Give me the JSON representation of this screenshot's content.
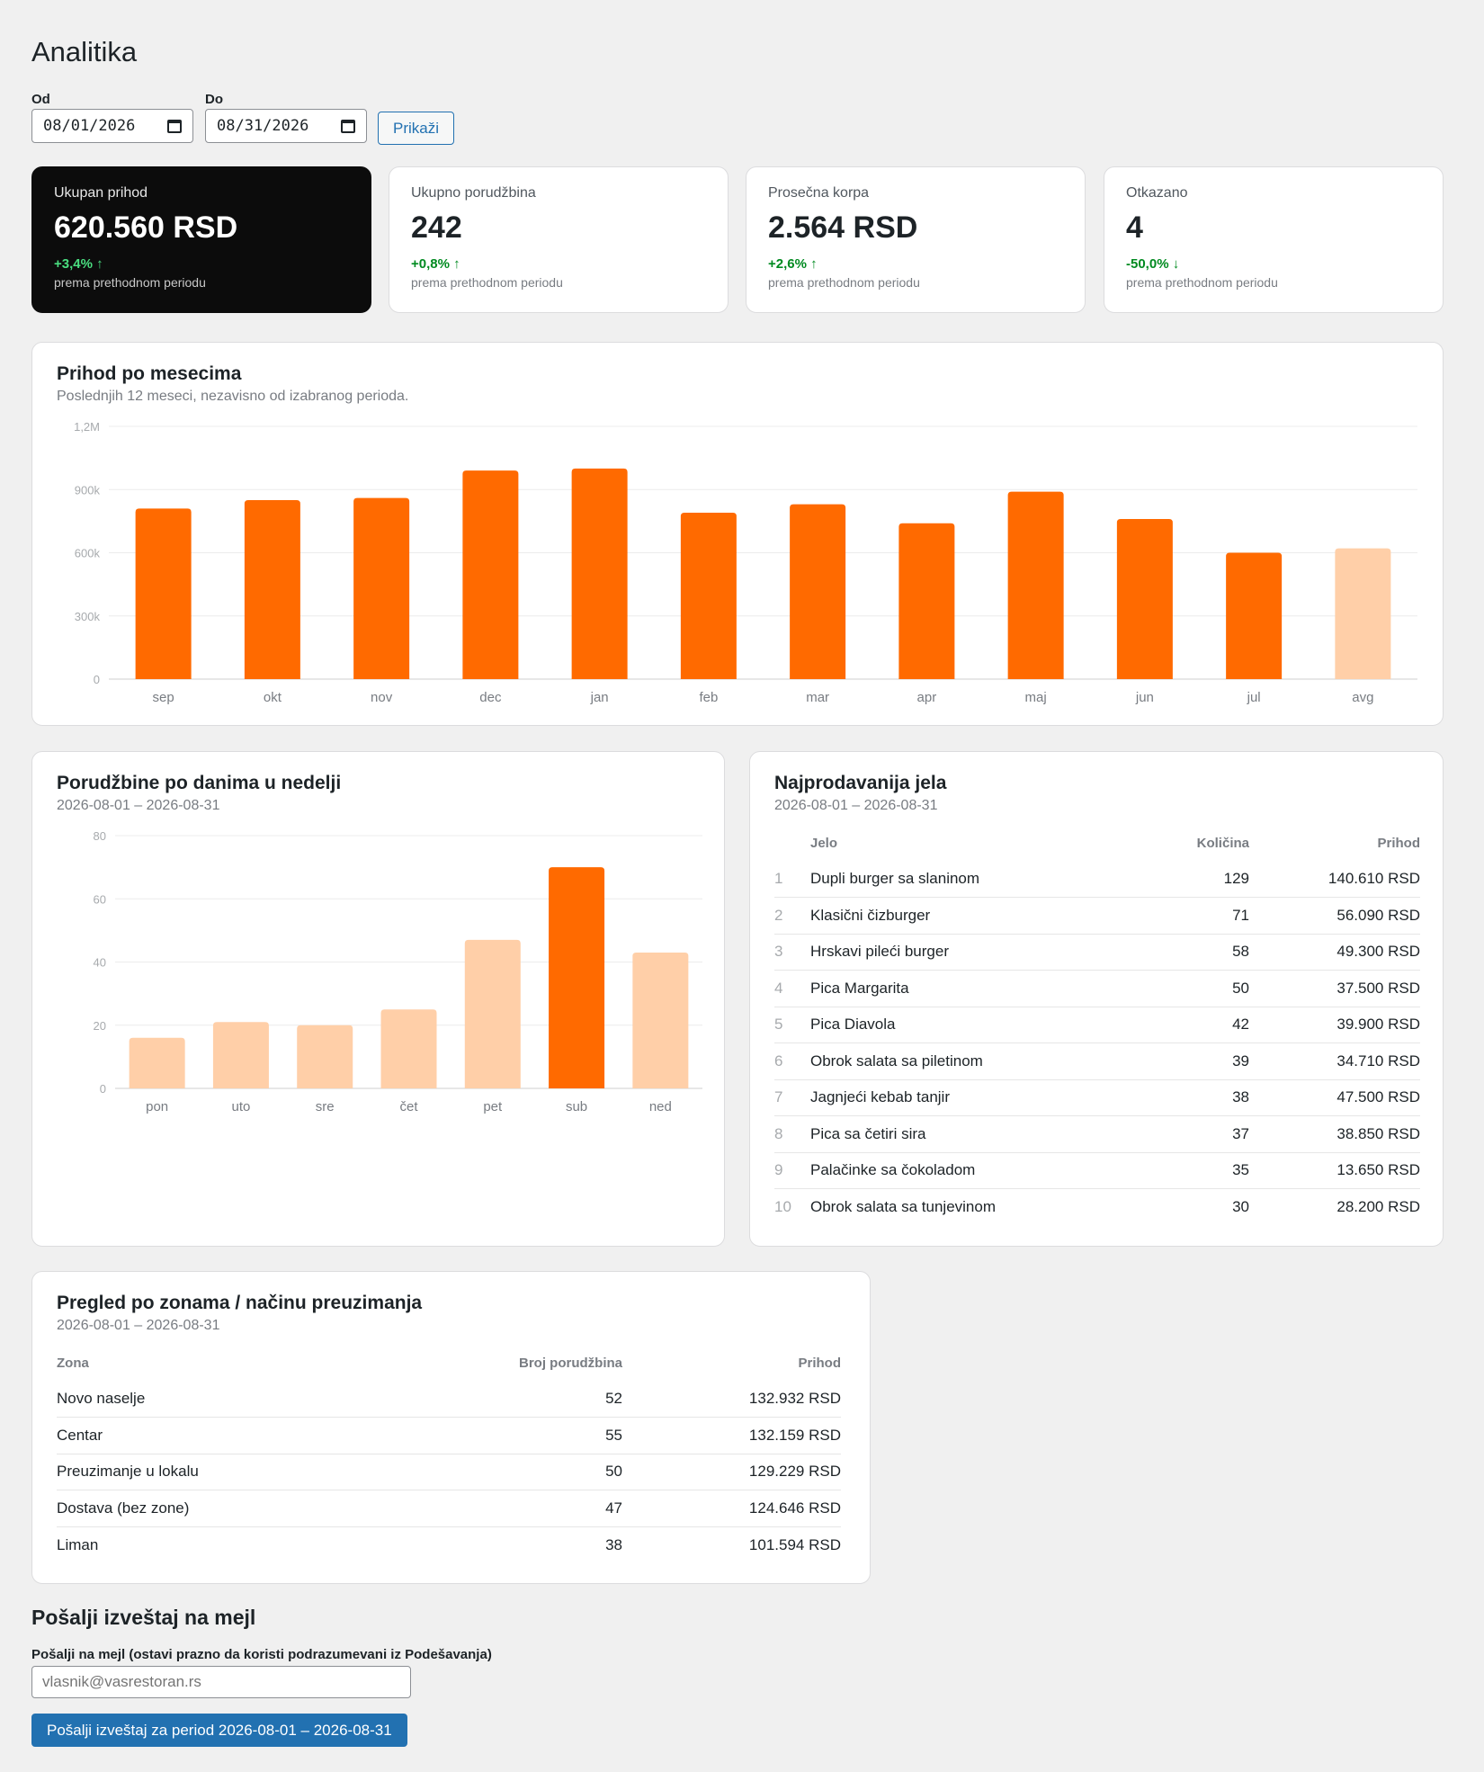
{
  "page": {
    "title": "Analitika"
  },
  "filter": {
    "from_label": "Od",
    "from_value": "08/01/2026",
    "to_label": "Do",
    "to_value": "08/31/2026",
    "show_button": "Prikaži"
  },
  "kpis": [
    {
      "label": "Ukupan prihod",
      "value": "620.560 RSD",
      "delta": "+3,4% ↑",
      "note": "prema prethodnom periodu"
    },
    {
      "label": "Ukupno porudžbina",
      "value": "242",
      "delta": "+0,8% ↑",
      "note": "prema prethodnom periodu"
    },
    {
      "label": "Prosečna korpa",
      "value": "2.564 RSD",
      "delta": "+2,6% ↑",
      "note": "prema prethodnom periodu"
    },
    {
      "label": "Otkazano",
      "value": "4",
      "delta": "-50,0% ↓",
      "note": "prema prethodnom periodu"
    }
  ],
  "monthly": {
    "title": "Prihod po mesecima",
    "subtitle": "Poslednjih 12 meseci, nezavisno od izabranog perioda."
  },
  "weekly": {
    "title": "Porudžbine po danima u nedelji",
    "subtitle": "2026-08-01 – 2026-08-31"
  },
  "top_dishes": {
    "title": "Najprodavanija jela",
    "subtitle": "2026-08-01 – 2026-08-31",
    "headers": {
      "name": "Jelo",
      "qty": "Količina",
      "revenue": "Prihod"
    },
    "rows": [
      {
        "rank": "1",
        "name": "Dupli burger sa slaninom",
        "qty": "129",
        "revenue": "140.610 RSD"
      },
      {
        "rank": "2",
        "name": "Klasični čizburger",
        "qty": "71",
        "revenue": "56.090 RSD"
      },
      {
        "rank": "3",
        "name": "Hrskavi pileći burger",
        "qty": "58",
        "revenue": "49.300 RSD"
      },
      {
        "rank": "4",
        "name": "Pica Margarita",
        "qty": "50",
        "revenue": "37.500 RSD"
      },
      {
        "rank": "5",
        "name": "Pica Diavola",
        "qty": "42",
        "revenue": "39.900 RSD"
      },
      {
        "rank": "6",
        "name": "Obrok salata sa piletinom",
        "qty": "39",
        "revenue": "34.710 RSD"
      },
      {
        "rank": "7",
        "name": "Jagnjeći kebab tanjir",
        "qty": "38",
        "revenue": "47.500 RSD"
      },
      {
        "rank": "8",
        "name": "Pica sa četiri sira",
        "qty": "37",
        "revenue": "38.850 RSD"
      },
      {
        "rank": "9",
        "name": "Palačinke sa čokoladom",
        "qty": "35",
        "revenue": "13.650 RSD"
      },
      {
        "rank": "10",
        "name": "Obrok salata sa tunjevinom",
        "qty": "30",
        "revenue": "28.200 RSD"
      }
    ]
  },
  "zones": {
    "title": "Pregled po zonama / načinu preuzimanja",
    "subtitle": "2026-08-01 – 2026-08-31",
    "headers": {
      "zone": "Zona",
      "orders": "Broj porudžbina",
      "revenue": "Prihod"
    },
    "rows": [
      {
        "zone": "Novo naselje",
        "orders": "52",
        "revenue": "132.932 RSD"
      },
      {
        "zone": "Centar",
        "orders": "55",
        "revenue": "132.159 RSD"
      },
      {
        "zone": "Preuzimanje u lokalu",
        "orders": "50",
        "revenue": "129.229 RSD"
      },
      {
        "zone": "Dostava (bez zone)",
        "orders": "47",
        "revenue": "124.646 RSD"
      },
      {
        "zone": "Liman",
        "orders": "38",
        "revenue": "101.594 RSD"
      }
    ]
  },
  "email": {
    "title": "Pošalji izveštaj na mejl",
    "label": "Pošalji na mejl (ostavi prazno da koristi podrazumevani iz Podešavanja)",
    "placeholder": "vlasnik@vasrestoran.rs",
    "button": "Pošalji izveštaj za period 2026-08-01 – 2026-08-31"
  },
  "colors": {
    "accent": "#ff6a00",
    "accent_light": "#ffcfa8",
    "button_blue": "#2271b1"
  },
  "icons": {
    "date_picker": "calendar-icon"
  },
  "chart_data": [
    {
      "type": "bar",
      "categories": [
        "sep",
        "okt",
        "nov",
        "dec",
        "jan",
        "feb",
        "mar",
        "apr",
        "maj",
        "jun",
        "jul",
        "avg"
      ],
      "values": [
        810000,
        850000,
        860000,
        990000,
        1000000,
        790000,
        830000,
        740000,
        890000,
        760000,
        600000,
        620560
      ],
      "highlight": [
        true,
        true,
        true,
        true,
        true,
        true,
        true,
        true,
        true,
        true,
        true,
        false
      ],
      "ylim": [
        0,
        1200000
      ],
      "ytick_labels": [
        "0",
        "300k",
        "600k",
        "900k",
        "1,2M"
      ],
      "ytick_values": [
        0,
        300000,
        600000,
        900000,
        1200000
      ],
      "grid": true
    },
    {
      "type": "bar",
      "categories": [
        "pon",
        "uto",
        "sre",
        "čet",
        "pet",
        "sub",
        "ned"
      ],
      "values": [
        16,
        21,
        20,
        25,
        47,
        70,
        43
      ],
      "highlight": [
        false,
        false,
        false,
        false,
        false,
        true,
        false
      ],
      "ylim": [
        0,
        80
      ],
      "ytick_labels": [
        "0",
        "20",
        "40",
        "60",
        "80"
      ],
      "ytick_values": [
        0,
        20,
        40,
        60,
        80
      ],
      "grid": true
    }
  ]
}
